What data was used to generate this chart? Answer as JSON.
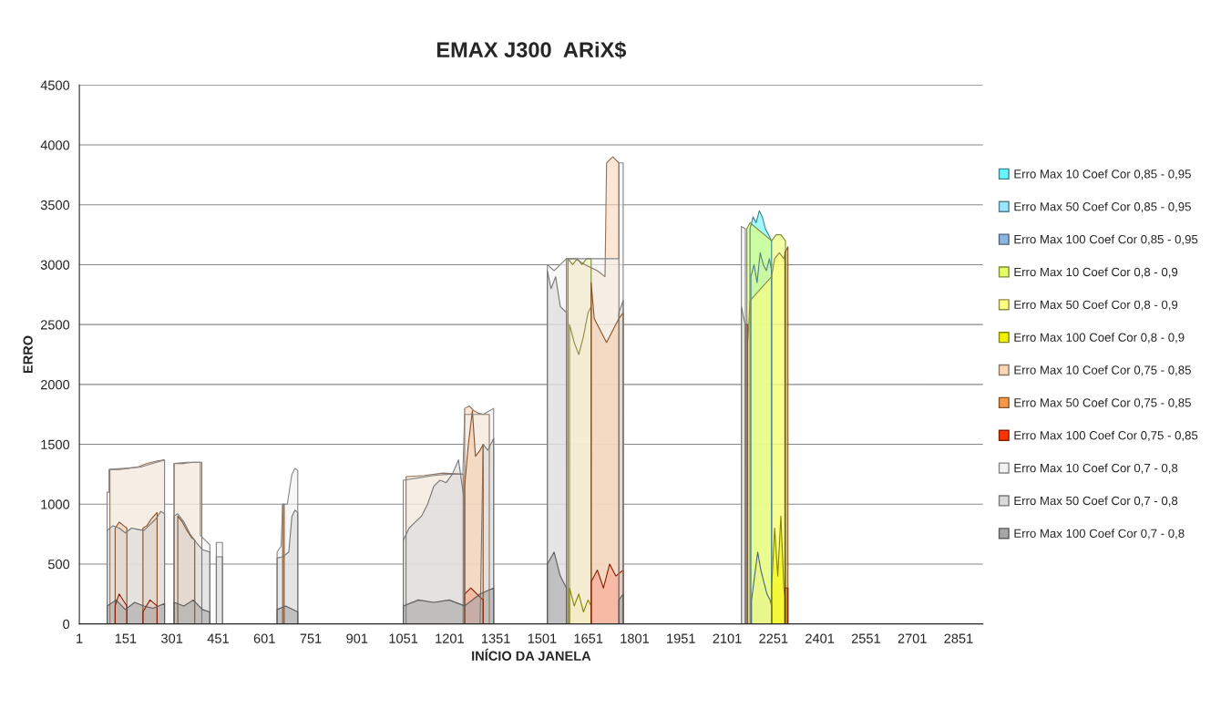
{
  "chart_data": {
    "type": "area",
    "title": "EMAX J300  ARiX$",
    "xlabel": "INÍCIO DA JANELA",
    "ylabel": "ERRO",
    "xlim": [
      1,
      2930
    ],
    "xticks": [
      1,
      151,
      301,
      451,
      601,
      751,
      901,
      1051,
      1201,
      1351,
      1501,
      1651,
      1801,
      1951,
      2101,
      2251,
      2401,
      2551,
      2701,
      2851
    ],
    "ylim": [
      0,
      4500
    ],
    "yticks": [
      0,
      500,
      1000,
      1500,
      2000,
      2500,
      3000,
      3500,
      4000,
      4500
    ],
    "grid": "y",
    "legend": "right",
    "series": [
      {
        "name": "Erro Max 10 Coef Cor 0,85 - 0,95",
        "color": "#66f5ff",
        "x": [
          2175,
          2175,
          2185,
          2195,
          2205,
          2215,
          2225,
          2235,
          2245,
          2245
        ],
        "values": [
          0,
          3300,
          3400,
          3350,
          3450,
          3400,
          3300,
          3250,
          3200,
          0
        ]
      },
      {
        "name": "Erro Max 50 Coef Cor 0,85 - 0,95",
        "color": "#99e6ff",
        "x": [
          2178,
          2178,
          2188,
          2198,
          2208,
          2218,
          2228,
          2238,
          2245,
          2245
        ],
        "values": [
          0,
          2900,
          3000,
          2850,
          3100,
          3000,
          2950,
          3050,
          2950,
          0
        ]
      },
      {
        "name": "Erro Max 100 Coef Cor 0,85 - 0,95",
        "color": "#8eb4e3",
        "x": [
          2180,
          2180,
          2190,
          2200,
          2210,
          2220,
          2230,
          2240,
          2245,
          2245
        ],
        "values": [
          0,
          200,
          400,
          600,
          450,
          350,
          250,
          200,
          150,
          0
        ]
      },
      {
        "name": "Erro Max 10 Coef Cor 0,8 - 0,9",
        "color": "#e6ff66",
        "x": [
          1585,
          1585,
          1600,
          1615,
          1630,
          1645,
          1660,
          1660,
          2165,
          2165,
          2175,
          2245,
          2260,
          2275,
          2290,
          2290
        ],
        "values": [
          0,
          3050,
          3000,
          3050,
          3000,
          3050,
          3050,
          0,
          0,
          3300,
          3350,
          3200,
          3250,
          3250,
          3200,
          0
        ]
      },
      {
        "name": "Erro Max 50 Coef Cor 0,8 - 0,9",
        "color": "#ffff80",
        "x": [
          1590,
          1590,
          1605,
          1620,
          1635,
          1650,
          1660,
          1660,
          2168,
          2168,
          2175,
          2245,
          2255,
          2270,
          2285,
          2290,
          2290
        ],
        "values": [
          0,
          2500,
          2350,
          2250,
          2400,
          2600,
          2650,
          0,
          0,
          2350,
          2700,
          2900,
          3050,
          3100,
          3050,
          3100,
          0
        ]
      },
      {
        "name": "Erro Max 100 Coef Cor 0,8 - 0,9",
        "color": "#f2f200",
        "x": [
          1590,
          1590,
          1605,
          1620,
          1635,
          1650,
          1660,
          1660,
          2245,
          2245,
          2255,
          2265,
          2275,
          2285,
          2290,
          2290
        ],
        "values": [
          0,
          300,
          150,
          250,
          100,
          200,
          150,
          0,
          0,
          300,
          800,
          400,
          900,
          300,
          200,
          0
        ]
      },
      {
        "name": "Erro Max 10 Coef Cor 0,75 - 0,85",
        "color": "#fcd5b5",
        "x": [
          100,
          100,
          130,
          160,
          190,
          220,
          250,
          277,
          277,
          308,
          308,
          340,
          370,
          398,
          398,
          1060,
          1060,
          1120,
          1180,
          1245,
          1245,
          1250,
          1250,
          1265,
          1280,
          1295,
          1310,
          1330,
          1330,
          1580,
          1580,
          1610,
          1640,
          1680,
          1705,
          1710,
          1730,
          1750,
          1750
        ],
        "values": [
          0,
          1290,
          1290,
          1300,
          1310,
          1340,
          1360,
          1370,
          0,
          0,
          1340,
          1340,
          1350,
          1350,
          0,
          0,
          1230,
          1240,
          1260,
          1250,
          0,
          0,
          1800,
          1820,
          1780,
          1760,
          1750,
          1750,
          0,
          0,
          3050,
          3050,
          3000,
          2950,
          2900,
          3850,
          3900,
          3850,
          0
        ]
      },
      {
        "name": "Erro Max 50 Coef Cor 0,75 - 0,85",
        "color": "#f79646",
        "x": [
          117,
          117,
          130,
          145,
          155,
          155,
          207,
          207,
          220,
          235,
          253,
          253,
          320,
          320,
          335,
          350,
          365,
          375,
          375,
          660,
          660,
          665,
          665,
          1250,
          1250,
          1262,
          1275,
          1285,
          1300,
          1310,
          1310,
          1660,
          1660,
          1670,
          1690,
          1710,
          1730,
          1750,
          1764,
          1764,
          2160,
          2160,
          2167,
          2167,
          2288,
          2288,
          2298,
          2298
        ],
        "values": [
          0,
          800,
          850,
          820,
          800,
          0,
          0,
          800,
          820,
          880,
          930,
          0,
          0,
          900,
          850,
          780,
          720,
          700,
          0,
          0,
          1000,
          1000,
          0,
          0,
          1150,
          1500,
          1780,
          1400,
          1450,
          1500,
          0,
          0,
          2850,
          2550,
          2450,
          2350,
          2450,
          2550,
          2600,
          0,
          0,
          2500,
          2500,
          0,
          0,
          3100,
          3150,
          0
        ]
      },
      {
        "name": "Erro Max 100 Coef Cor 0,75 - 0,85",
        "color": "#ff3300",
        "x": [
          117,
          117,
          130,
          155,
          155,
          207,
          207,
          230,
          253,
          253,
          1250,
          1250,
          1270,
          1290,
          1310,
          1310,
          1660,
          1660,
          1680,
          1700,
          1720,
          1740,
          1764,
          1764,
          2288,
          2288,
          2298,
          2298
        ],
        "values": [
          0,
          150,
          250,
          150,
          0,
          0,
          100,
          200,
          150,
          0,
          0,
          250,
          300,
          250,
          200,
          0,
          0,
          350,
          450,
          300,
          500,
          400,
          450,
          0,
          0,
          300,
          300,
          0
        ]
      },
      {
        "name": "Erro Max 10 Coef Cor 0,7 - 0,8",
        "color": "#f2f2f2",
        "x": [
          91,
          91,
          97,
          97,
          150,
          200,
          277,
          277,
          308,
          308,
          350,
          393,
          393,
          424,
          424,
          445,
          445,
          465,
          465,
          642,
          642,
          655,
          660,
          675,
          690,
          700,
          709,
          709,
          1051,
          1051,
          1100,
          1150,
          1200,
          1244,
          1250,
          1310,
          1330,
          1344,
          1344,
          1518,
          1518,
          1540,
          1560,
          1580,
          1750,
          1750,
          1764,
          1764,
          2147,
          2147,
          2160,
          2160
        ],
        "values": [
          0,
          1100,
          1100,
          1290,
          1300,
          1310,
          1370,
          0,
          0,
          1340,
          1350,
          1350,
          740,
          660,
          0,
          0,
          680,
          680,
          0,
          0,
          600,
          650,
          1000,
          1000,
          1250,
          1300,
          1280,
          0,
          0,
          1200,
          1220,
          1240,
          1250,
          1250,
          1750,
          1750,
          1780,
          1800,
          0,
          0,
          3000,
          2950,
          3000,
          3050,
          3050,
          3850,
          3850,
          0,
          0,
          3320,
          3300,
          0
        ]
      },
      {
        "name": "Erro Max 50 Coef Cor 0,7 - 0,8",
        "color": "#d9d9d9",
        "x": [
          91,
          91,
          110,
          130,
          150,
          170,
          190,
          210,
          230,
          250,
          265,
          277,
          277,
          308,
          308,
          320,
          340,
          360,
          380,
          400,
          424,
          424,
          445,
          445,
          465,
          465,
          642,
          642,
          660,
          680,
          690,
          700,
          709,
          709,
          1051,
          1051,
          1070,
          1090,
          1110,
          1130,
          1150,
          1170,
          1190,
          1210,
          1230,
          1245,
          1250,
          1250,
          1300,
          1310,
          1325,
          1344,
          1344,
          1518,
          1518,
          1530,
          1545,
          1560,
          1580,
          1580,
          1750,
          1750,
          1764,
          1764,
          2147,
          2147,
          2155,
          2160,
          2160
        ],
        "values": [
          0,
          780,
          820,
          800,
          760,
          800,
          790,
          780,
          830,
          880,
          940,
          920,
          0,
          0,
          900,
          920,
          850,
          750,
          680,
          620,
          600,
          0,
          0,
          560,
          560,
          0,
          0,
          550,
          560,
          600,
          900,
          950,
          930,
          0,
          0,
          700,
          800,
          850,
          900,
          1000,
          1150,
          1200,
          1180,
          1250,
          1370,
          1100,
          1050,
          0,
          0,
          1500,
          1450,
          1550,
          0,
          0,
          2950,
          2800,
          2900,
          2650,
          2600,
          0,
          0,
          2600,
          2700,
          0,
          0,
          2650,
          2550,
          2500,
          0
        ]
      },
      {
        "name": "Erro Max 100 Coef Cor 0,7 - 0,8",
        "color": "#a6a6a6",
        "x": [
          91,
          91,
          120,
          150,
          180,
          210,
          240,
          277,
          277,
          308,
          308,
          340,
          370,
          400,
          424,
          424,
          642,
          642,
          670,
          709,
          709,
          1051,
          1051,
          1100,
          1150,
          1200,
          1250,
          1300,
          1344,
          1344,
          1518,
          1518,
          1540,
          1560,
          1580,
          1580,
          1750,
          1750,
          1764,
          1764
        ],
        "values": [
          0,
          150,
          200,
          120,
          180,
          150,
          130,
          170,
          0,
          0,
          180,
          150,
          200,
          120,
          100,
          0,
          0,
          120,
          150,
          100,
          0,
          0,
          150,
          200,
          180,
          200,
          150,
          250,
          300,
          0,
          0,
          500,
          600,
          400,
          300,
          0,
          0,
          200,
          250,
          0
        ]
      }
    ]
  }
}
